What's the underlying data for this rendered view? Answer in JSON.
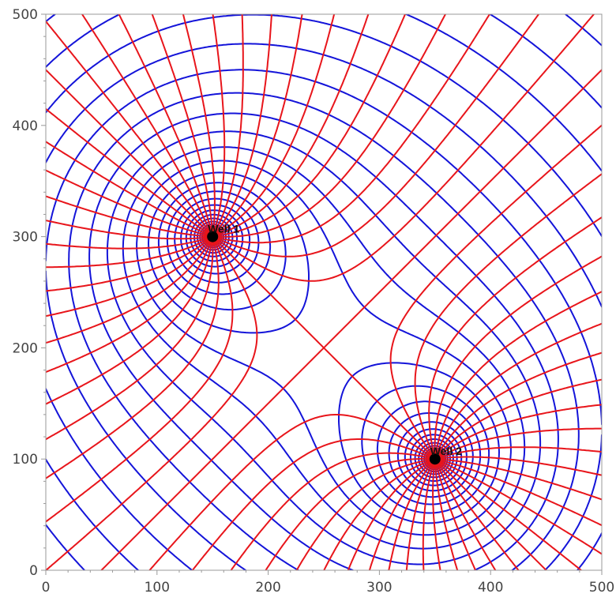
{
  "chart_data": {
    "type": "contour",
    "title": "",
    "xlabel": "",
    "ylabel": "",
    "xlim": [
      0,
      500
    ],
    "ylim": [
      0,
      500
    ],
    "x_ticks": [
      0,
      100,
      200,
      300,
      400,
      500
    ],
    "y_ticks": [
      0,
      100,
      200,
      300,
      400,
      500
    ],
    "grid": false,
    "wells": [
      {
        "name": "Well 1",
        "label": "Well 1",
        "x": 150,
        "y": 300,
        "strength": 1.0
      },
      {
        "name": "Well 2",
        "label": "Well 2",
        "x": 350,
        "y": 100,
        "strength": 1.0
      }
    ],
    "series": [
      {
        "kind": "streamlines",
        "color": "#e8151b",
        "contour_levels": 34
      },
      {
        "kind": "potential-contours",
        "color": "#1414d9",
        "contour_levels": 24
      }
    ],
    "colors": {
      "streamline": "#e8151b",
      "potential": "#1414d9",
      "well_marker": "#000000",
      "axis": "#9a9a9a"
    }
  }
}
